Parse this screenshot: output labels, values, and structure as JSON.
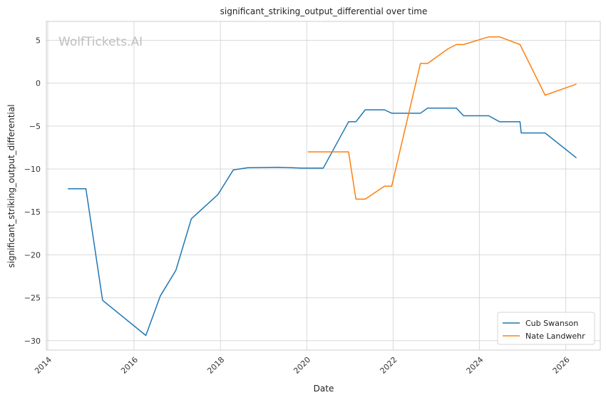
{
  "chart_data": {
    "type": "line",
    "title": "significant_striking_output_differential over time",
    "xlabel": "Date",
    "ylabel": "significant_striking_output_differential",
    "watermark": "WolfTickets.AI",
    "x_ticks": [
      "2014",
      "2016",
      "2018",
      "2020",
      "2022",
      "2024",
      "2026"
    ],
    "y_ticks": [
      "5",
      "0",
      "−5",
      "−10",
      "−15",
      "−20",
      "−25",
      "−30"
    ],
    "xlim": [
      "2013-12-20",
      "2026-10-20"
    ],
    "ylim": [
      -31.1,
      7.2
    ],
    "grid": true,
    "legend_position": "lower-right",
    "series": [
      {
        "name": "Cub Swanson",
        "color": "#1f77b4",
        "points": [
          {
            "x": "2014-06-20",
            "y": -12.3
          },
          {
            "x": "2014-11-20",
            "y": -12.3
          },
          {
            "x": "2015-04-10",
            "y": -25.3
          },
          {
            "x": "2016-04-10",
            "y": -29.4
          },
          {
            "x": "2016-08-10",
            "y": -24.8
          },
          {
            "x": "2016-12-20",
            "y": -21.8
          },
          {
            "x": "2017-04-30",
            "y": -15.8
          },
          {
            "x": "2017-12-10",
            "y": -13.0
          },
          {
            "x": "2018-04-20",
            "y": -10.1
          },
          {
            "x": "2018-08-20",
            "y": -9.85
          },
          {
            "x": "2019-05-10",
            "y": -9.8
          },
          {
            "x": "2019-11-20",
            "y": -9.9
          },
          {
            "x": "2020-05-20",
            "y": -9.9
          },
          {
            "x": "2020-12-20",
            "y": -4.5
          },
          {
            "x": "2021-02-20",
            "y": -4.5
          },
          {
            "x": "2021-05-10",
            "y": -3.1
          },
          {
            "x": "2021-10-20",
            "y": -3.1
          },
          {
            "x": "2021-12-20",
            "y": -3.5
          },
          {
            "x": "2022-03-20",
            "y": -3.5
          },
          {
            "x": "2022-08-20",
            "y": -3.5
          },
          {
            "x": "2022-10-20",
            "y": -2.9
          },
          {
            "x": "2023-06-20",
            "y": -2.9
          },
          {
            "x": "2023-08-20",
            "y": -3.8
          },
          {
            "x": "2024-03-20",
            "y": -3.8
          },
          {
            "x": "2024-06-20",
            "y": -4.5
          },
          {
            "x": "2024-12-10",
            "y": -4.5
          },
          {
            "x": "2024-12-20",
            "y": -5.8
          },
          {
            "x": "2025-07-10",
            "y": -5.8
          },
          {
            "x": "2026-04-01",
            "y": -8.7
          }
        ]
      },
      {
        "name": "Nate Landwehr",
        "color": "#ff7f0e",
        "points": [
          {
            "x": "2020-01-10",
            "y": -8.0
          },
          {
            "x": "2020-12-20",
            "y": -8.0
          },
          {
            "x": "2021-02-20",
            "y": -13.5
          },
          {
            "x": "2021-05-10",
            "y": -13.5
          },
          {
            "x": "2021-10-20",
            "y": -12.0
          },
          {
            "x": "2021-12-20",
            "y": -12.0
          },
          {
            "x": "2022-08-20",
            "y": 2.3
          },
          {
            "x": "2022-10-20",
            "y": 2.3
          },
          {
            "x": "2023-04-10",
            "y": 4.0
          },
          {
            "x": "2023-06-20",
            "y": 4.5
          },
          {
            "x": "2023-08-20",
            "y": 4.5
          },
          {
            "x": "2024-03-20",
            "y": 5.4
          },
          {
            "x": "2024-06-20",
            "y": 5.4
          },
          {
            "x": "2024-12-10",
            "y": 4.5
          },
          {
            "x": "2025-07-10",
            "y": -1.4
          },
          {
            "x": "2026-04-01",
            "y": -0.1
          }
        ]
      }
    ]
  }
}
